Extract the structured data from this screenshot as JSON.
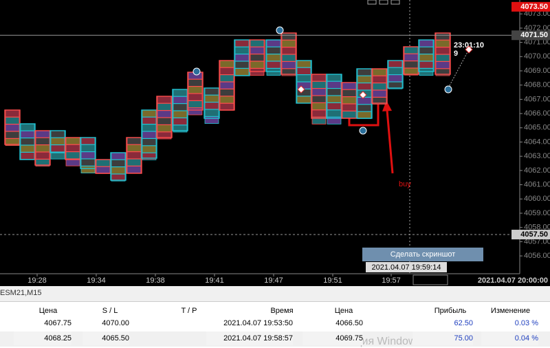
{
  "price_axis": {
    "ticks": [
      {
        "value": 4056,
        "label": "4056.00"
      },
      {
        "value": 4057,
        "label": "4057.00"
      },
      {
        "value": 4058,
        "label": "4058.00"
      },
      {
        "value": 4059,
        "label": "4059.00"
      },
      {
        "value": 4060,
        "label": "4060.00"
      },
      {
        "value": 4061,
        "label": "4061.00"
      },
      {
        "value": 4062,
        "label": "4062.00"
      },
      {
        "value": 4063,
        "label": "4063.00"
      },
      {
        "value": 4064,
        "label": "4064.00"
      },
      {
        "value": 4065,
        "label": "4065.00"
      },
      {
        "value": 4066,
        "label": "4066.00"
      },
      {
        "value": 4067,
        "label": "4067.00"
      },
      {
        "value": 4068,
        "label": "4068.00"
      },
      {
        "value": 4069,
        "label": "4069.00"
      },
      {
        "value": 4070,
        "label": "4070.00"
      },
      {
        "value": 4071,
        "label": "4071.00"
      },
      {
        "value": 4072,
        "label": "4072.00"
      },
      {
        "value": 4073,
        "label": "4073.00"
      }
    ],
    "high": {
      "value": 4073.5,
      "label": "4073.50"
    },
    "current": {
      "value": 4071.5,
      "label": "4071.50"
    },
    "crosshair": {
      "value": 4057.5,
      "label": "4057.50"
    }
  },
  "time_axis": {
    "labels": [
      "19:28",
      "19:34",
      "19:38",
      "19:41",
      "19:47",
      "19:51",
      "19:57"
    ],
    "last": "2021.04.07 20:00:00",
    "crosshair": "2021.04.07 19:59:14"
  },
  "annotations": {
    "buy": "buy",
    "timer": "23:01:10",
    "count": "9"
  },
  "screenshot_button": "Сделать скриншот",
  "trade_panel": {
    "symbol": "ESM21,M15",
    "columns": [
      "Цена",
      "S / L",
      "T / P",
      "Время",
      "Цена",
      "Прибыль",
      "Изменение"
    ],
    "rows": [
      {
        "open_price": "4067.75",
        "sl": "4070.00",
        "time": "2021.04.07 19:53:50",
        "price": "4066.50",
        "profit": "62.50",
        "change": "0.03 %"
      },
      {
        "open_price": "4068.25",
        "sl": "4065.50",
        "time": "2021.04.07 19:58:57",
        "price": "4069.75",
        "profit": "75.00",
        "change": "0.04 %"
      }
    ]
  },
  "watermark": "Активация Windows"
}
